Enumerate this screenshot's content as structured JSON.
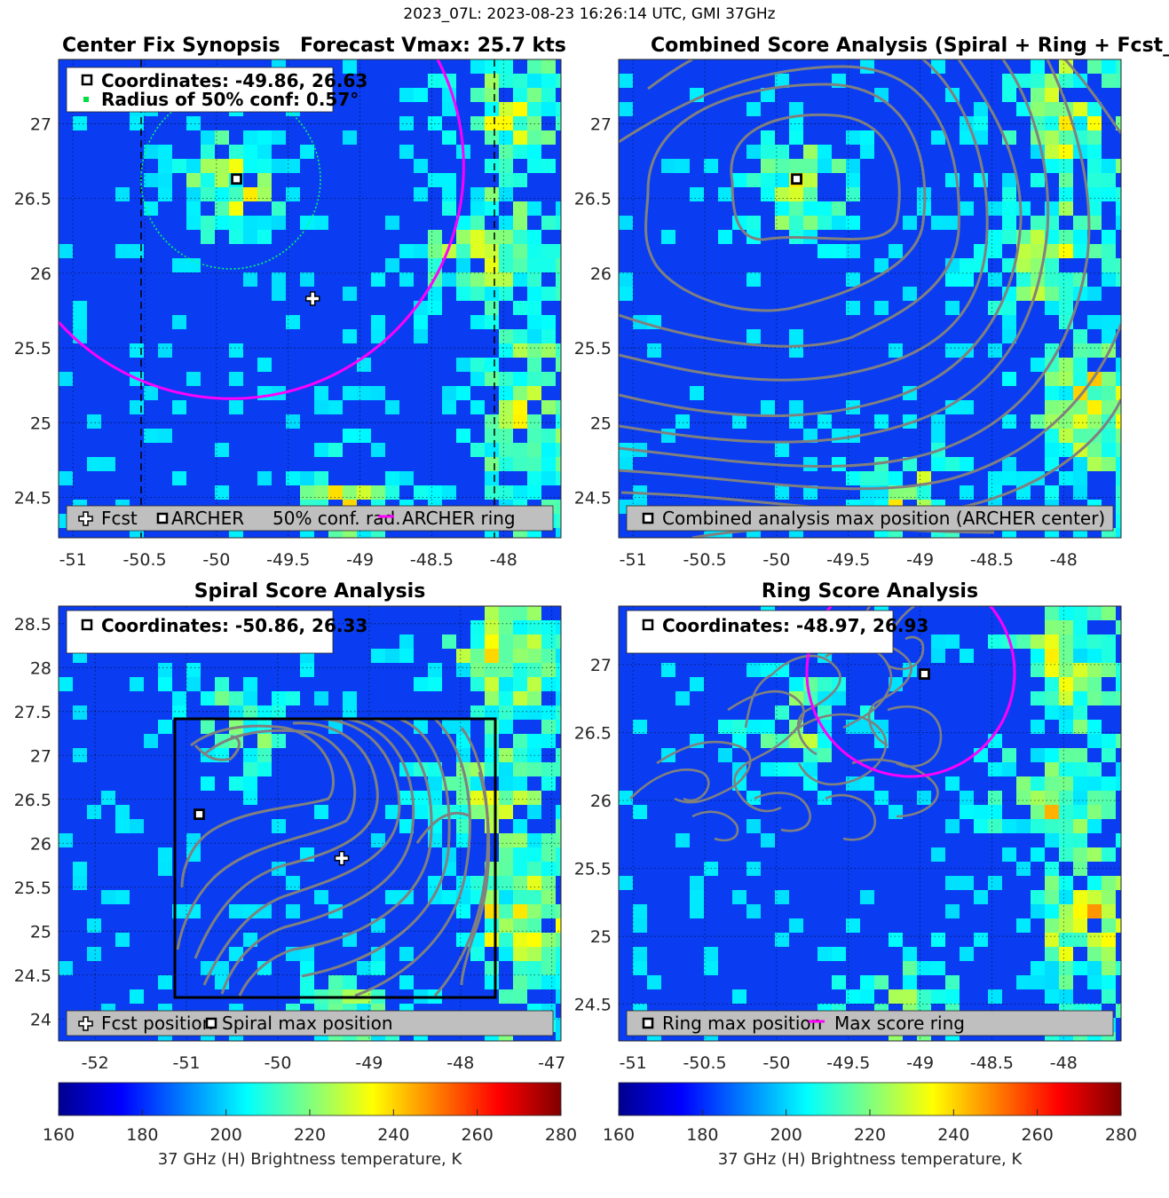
{
  "figure_title": "2023_07L: 2023-08-23 16:26:14 UTC, GMI 37GHz",
  "colors": {
    "forecast_ring": "#ff00ff",
    "confidence_circle": "#00ff66",
    "contour": "#808080",
    "legend_bg": "#bfbfbf",
    "box": "#000000"
  },
  "panels": [
    {
      "title_left": "Center Fix Synopsis",
      "title_right": "Forecast Vmax: 25.7 kts",
      "info_lines": [
        "Coordinates: -49.86, 26.63",
        "Radius of 50% conf: 0.57°"
      ],
      "legend": [
        "Fcst",
        "ARCHER",
        "50% conf. rad.",
        "ARCHER ring"
      ]
    },
    {
      "title": "Combined Score Analysis (Spiral + Ring + Fcst_Pe",
      "legend": [
        "Combined analysis max position (ARCHER center)"
      ]
    },
    {
      "title": "Spiral Score Analysis",
      "info_lines": [
        "Coordinates: -50.86, 26.33"
      ],
      "legend": [
        "Fcst position",
        "Spiral max position"
      ]
    },
    {
      "title": "Ring Score Analysis",
      "info_lines": [
        "Coordinates: -48.97, 26.93"
      ],
      "legend": [
        "Ring max position",
        "Max score ring"
      ]
    }
  ],
  "colorbar": {
    "label": "37 GHz (H) Brightness temperature, K",
    "ticks": [
      "160",
      "180",
      "200",
      "220",
      "240",
      "260",
      "280"
    ],
    "range": [
      160,
      280
    ],
    "colormap": "jet"
  },
  "chart_data": [
    {
      "type": "heatmap",
      "title": "Center Fix Synopsis",
      "x_ticks": [
        -51,
        -50.5,
        -50,
        -49.5,
        -49,
        -48.5,
        -48
      ],
      "y_ticks": [
        24.5,
        25,
        25.5,
        26,
        26.5,
        27
      ],
      "xlim": [
        -51.1,
        -47.6
      ],
      "ylim": [
        24.23,
        27.43
      ],
      "markers": [
        {
          "name": "Fcst",
          "lon": -49.33,
          "lat": 25.83
        },
        {
          "name": "ARCHER",
          "lon": -49.86,
          "lat": 26.63
        }
      ],
      "confidence_radius_deg": 0.57,
      "forecast_vmax_kts": 25.7
    },
    {
      "type": "heatmap",
      "title": "Combined Score Analysis (Spiral + Ring + Fcst_Pe",
      "x_ticks": [
        -51,
        -50.5,
        -50,
        -49.5,
        -49,
        -48.5,
        -48
      ],
      "y_ticks": [
        24.5,
        25,
        25.5,
        26,
        26.5,
        27
      ],
      "xlim": [
        -51.1,
        -47.6
      ],
      "ylim": [
        24.23,
        27.43
      ],
      "markers": [
        {
          "name": "Combined analysis max position",
          "lon": -49.86,
          "lat": 26.63
        }
      ]
    },
    {
      "type": "heatmap",
      "title": "Spiral Score Analysis",
      "x_ticks": [
        -52,
        -51,
        -50,
        -49,
        -48,
        -47
      ],
      "y_ticks": [
        24,
        24.5,
        25,
        25.5,
        26,
        26.5,
        27,
        27.5,
        28,
        28.5
      ],
      "xlim": [
        -52.4,
        -46.9
      ],
      "ylim": [
        23.75,
        28.7
      ],
      "markers": [
        {
          "name": "Spiral max position",
          "lon": -50.86,
          "lat": 26.33
        },
        {
          "name": "Fcst position",
          "lon": -49.3,
          "lat": 25.83
        }
      ]
    },
    {
      "type": "heatmap",
      "title": "Ring Score Analysis",
      "x_ticks": [
        -51,
        -50.5,
        -50,
        -49.5,
        -49,
        -48.5,
        -48
      ],
      "y_ticks": [
        24.5,
        25,
        25.5,
        26,
        26.5,
        27
      ],
      "xlim": [
        -51.1,
        -47.6
      ],
      "ylim": [
        24.23,
        27.43
      ],
      "markers": [
        {
          "name": "Ring max position",
          "lon": -48.97,
          "lat": 26.93
        }
      ]
    }
  ]
}
